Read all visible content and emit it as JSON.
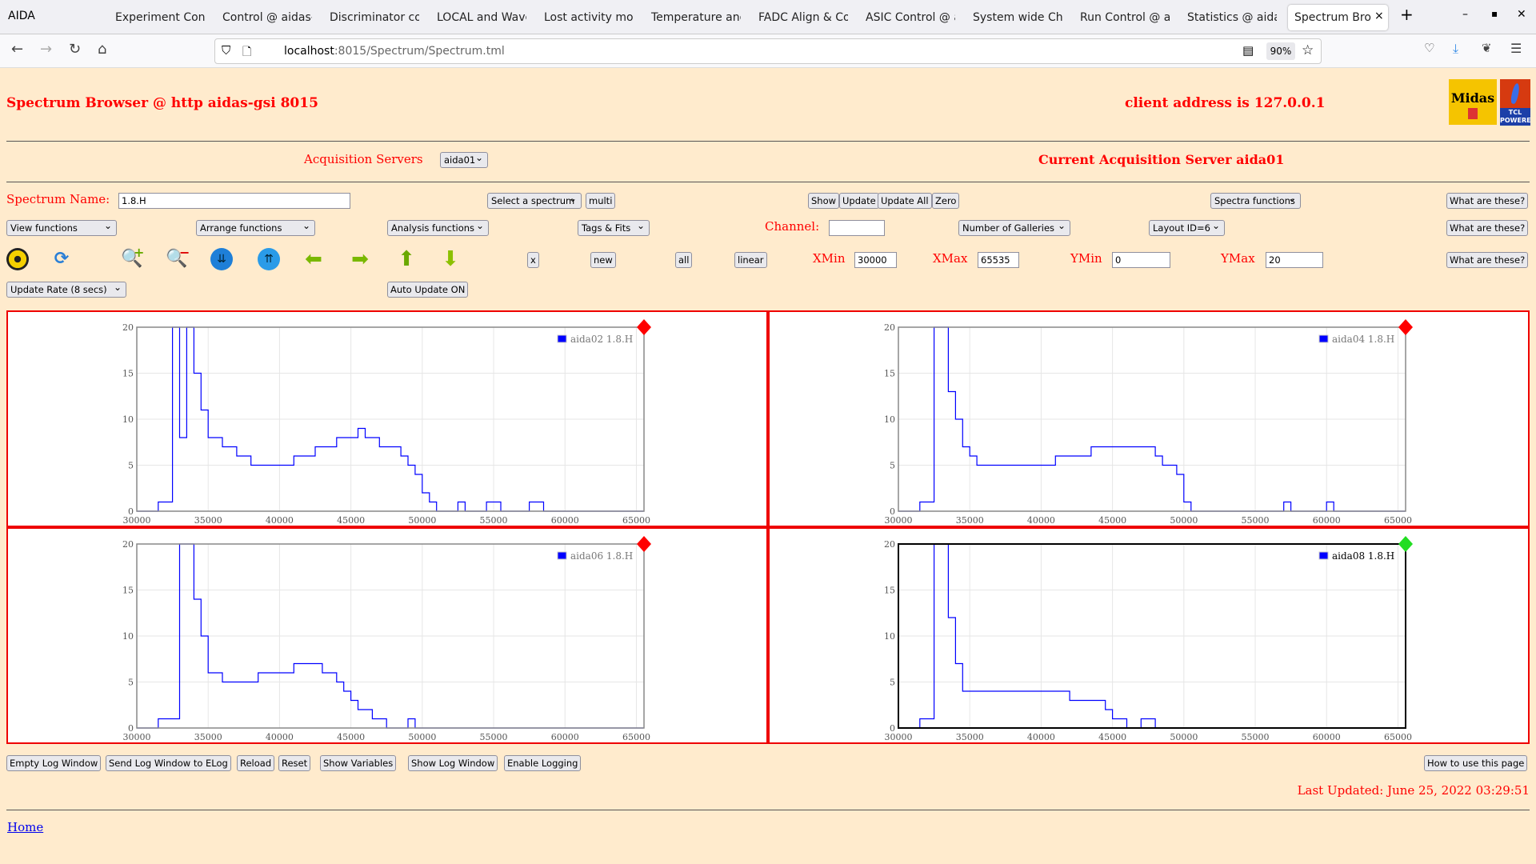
{
  "browser": {
    "app": "AIDA",
    "tabs": [
      "Experiment Contr",
      "Control @ aidas-",
      "Discriminator con",
      "LOCAL and Wave",
      "Lost activity moni",
      "Temperature and",
      "FADC Align & Co",
      "ASIC Control @ a",
      "System wide Che",
      "Run Control @ ai",
      "Statistics @ aidas",
      "Spectrum Brow"
    ],
    "url_host": "localhost",
    "url_rest": ":8015/Spectrum/Spectrum.tml",
    "zoom": "90%"
  },
  "header": {
    "title": "Spectrum Browser @ http aidas-gsi 8015",
    "client": "client address is 127.0.0.1",
    "logo1": "Midas",
    "logo2": "TCL POWERED"
  },
  "acq": {
    "label": "Acquisition Servers",
    "server": "aida01",
    "current": "Current Acquisition Server aida01"
  },
  "controls": {
    "spectrum_name_label": "Spectrum Name:",
    "spectrum_name": "1.8.H",
    "select_spectrum": "Select a spectrum",
    "multi": "multi",
    "show": "Show",
    "update": "Update",
    "update_all": "Update All",
    "zero": "Zero",
    "spectra_functions": "Spectra functions",
    "what": "What are these?",
    "view_functions": "View functions",
    "arrange_functions": "Arrange functions",
    "analysis_functions": "Analysis functions",
    "tags_fits": "Tags & Fits",
    "channel_label": "Channel:",
    "channel": "",
    "galleries": "Number of Galleries",
    "layout": "Layout ID=6",
    "x": "x",
    "new": "new",
    "all": "all",
    "linear": "linear",
    "xmin_label": "XMin",
    "xmin": "30000",
    "xmax_label": "XMax",
    "xmax": "65535",
    "ymin_label": "YMin",
    "ymin": "0",
    "ymax_label": "YMax",
    "ymax": "20",
    "update_rate": "Update Rate (8 secs)",
    "auto_update": "Auto Update ON"
  },
  "footer": {
    "buttons": [
      "Empty Log Window",
      "Send Log Window to ELog",
      "Reload",
      "Reset",
      "Show Variables",
      "Show Log Window",
      "Enable Logging"
    ],
    "howto": "How to use this page",
    "last_updated": "Last Updated: June 25, 2022 03:29:51",
    "home": "Home"
  },
  "colors": {
    "series": "#0000ff",
    "status_red": "#ff0000",
    "status_green": "#22dd22"
  },
  "chart_data": [
    {
      "type": "line",
      "legend": "aida02 1.8.H",
      "status": "red",
      "xlim": [
        30000,
        65535
      ],
      "ylim": [
        0,
        20
      ],
      "xticks": [
        "30000",
        "35000",
        "40000",
        "45000",
        "50000",
        "55000",
        "60000",
        "65000"
      ],
      "yticks": [
        "0",
        "5",
        "10",
        "15",
        "20"
      ],
      "x_start": 30000,
      "bin": 500,
      "values": [
        0,
        0,
        0,
        1,
        1,
        20,
        8,
        20,
        15,
        11,
        8,
        8,
        7,
        7,
        6,
        6,
        5,
        5,
        5,
        5,
        5,
        5,
        6,
        6,
        6,
        7,
        7,
        7,
        8,
        8,
        8,
        9,
        8,
        8,
        7,
        7,
        7,
        6,
        5,
        4,
        2,
        1,
        0,
        0,
        0,
        1,
        0,
        0,
        0,
        1,
        1,
        0,
        0,
        0,
        0,
        1,
        1,
        0,
        0,
        0,
        0,
        0,
        0,
        0,
        0,
        0,
        0,
        0,
        0,
        0,
        0
      ]
    },
    {
      "type": "line",
      "legend": "aida04 1.8.H",
      "status": "red",
      "xlim": [
        30000,
        65535
      ],
      "ylim": [
        0,
        20
      ],
      "xticks": [
        "30000",
        "35000",
        "40000",
        "45000",
        "50000",
        "55000",
        "60000",
        "65000"
      ],
      "yticks": [
        "0",
        "5",
        "10",
        "15",
        "20"
      ],
      "x_start": 30000,
      "bin": 500,
      "values": [
        0,
        0,
        0,
        1,
        1,
        20,
        20,
        13,
        10,
        7,
        6,
        5,
        5,
        5,
        5,
        5,
        5,
        5,
        5,
        5,
        5,
        5,
        6,
        6,
        6,
        6,
        6,
        7,
        7,
        7,
        7,
        7,
        7,
        7,
        7,
        7,
        6,
        5,
        5,
        4,
        1,
        0,
        0,
        0,
        0,
        0,
        0,
        0,
        0,
        0,
        0,
        0,
        0,
        0,
        1,
        0,
        0,
        0,
        0,
        0,
        1,
        0,
        0,
        0,
        0,
        0,
        0,
        0,
        0,
        0,
        0
      ]
    },
    {
      "type": "line",
      "legend": "aida06 1.8.H",
      "status": "red",
      "xlim": [
        30000,
        65535
      ],
      "ylim": [
        0,
        20
      ],
      "xticks": [
        "30000",
        "35000",
        "40000",
        "45000",
        "50000",
        "55000",
        "60000",
        "65000"
      ],
      "yticks": [
        "0",
        "5",
        "10",
        "15",
        "20"
      ],
      "x_start": 30000,
      "bin": 500,
      "values": [
        0,
        0,
        0,
        1,
        1,
        1,
        20,
        20,
        14,
        10,
        6,
        6,
        5,
        5,
        5,
        5,
        5,
        6,
        6,
        6,
        6,
        6,
        7,
        7,
        7,
        7,
        6,
        6,
        5,
        4,
        3,
        2,
        2,
        1,
        1,
        0,
        0,
        0,
        1,
        0,
        0,
        0,
        0,
        0,
        0,
        0,
        0,
        0,
        0,
        0,
        0,
        0,
        0,
        0,
        0,
        0,
        0,
        0,
        0,
        0,
        0,
        0,
        0,
        0,
        0,
        0,
        0,
        0,
        0,
        0,
        0
      ]
    },
    {
      "type": "line",
      "legend": "aida08 1.8.H",
      "status": "green",
      "xlim": [
        30000,
        65535
      ],
      "ylim": [
        0,
        20
      ],
      "xticks": [
        "30000",
        "35000",
        "40000",
        "45000",
        "50000",
        "55000",
        "60000",
        "65000"
      ],
      "yticks": [
        "0",
        "5",
        "10",
        "15",
        "20"
      ],
      "x_start": 30000,
      "bin": 500,
      "values": [
        0,
        0,
        0,
        1,
        1,
        20,
        20,
        12,
        7,
        4,
        4,
        4,
        4,
        4,
        4,
        4,
        4,
        4,
        4,
        4,
        4,
        4,
        4,
        4,
        3,
        3,
        3,
        3,
        3,
        2,
        1,
        1,
        0,
        0,
        1,
        1,
        0,
        0,
        0,
        0,
        0,
        0,
        0,
        0,
        0,
        0,
        0,
        0,
        0,
        0,
        0,
        0,
        0,
        0,
        0,
        0,
        0,
        0,
        0,
        0,
        0,
        0,
        0,
        0,
        0,
        0,
        0,
        0,
        0,
        0,
        0
      ]
    }
  ]
}
